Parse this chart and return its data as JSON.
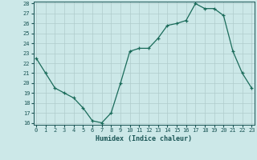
{
  "x": [
    0,
    1,
    2,
    3,
    4,
    5,
    6,
    7,
    8,
    9,
    10,
    11,
    12,
    13,
    14,
    15,
    16,
    17,
    18,
    19,
    20,
    21,
    22,
    23
  ],
  "y": [
    22.5,
    21.0,
    19.5,
    19.0,
    18.5,
    17.5,
    16.2,
    16.0,
    17.0,
    20.0,
    23.2,
    23.5,
    23.5,
    24.5,
    25.8,
    26.0,
    26.3,
    28.0,
    27.5,
    27.5,
    26.8,
    23.2,
    21.0,
    19.5
  ],
  "xlabel": "Humidex (Indice chaleur)",
  "ylim": [
    16,
    28
  ],
  "xlim": [
    -0.3,
    23.3
  ],
  "yticks": [
    16,
    17,
    18,
    19,
    20,
    21,
    22,
    23,
    24,
    25,
    26,
    27,
    28
  ],
  "xticks": [
    0,
    1,
    2,
    3,
    4,
    5,
    6,
    7,
    8,
    9,
    10,
    11,
    12,
    13,
    14,
    15,
    16,
    17,
    18,
    19,
    20,
    21,
    22,
    23
  ],
  "line_color": "#1a6b5a",
  "marker": "+",
  "bg_color": "#cce8e8",
  "grid_color": "#b0cccc",
  "label_color": "#1a5555",
  "font_family": "monospace",
  "tick_fontsize": 5.0,
  "xlabel_fontsize": 6.0
}
